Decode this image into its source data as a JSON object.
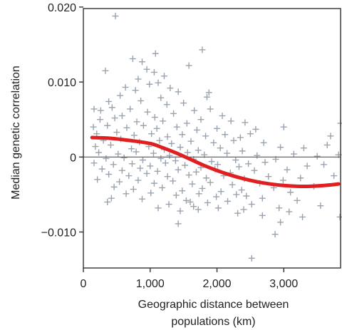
{
  "chart_data": {
    "type": "scatter",
    "ylabel": "Median genetic correlation",
    "xlabel_lines": [
      "Geographic distance between",
      "populations (km)"
    ],
    "xlim": [
      0,
      3850
    ],
    "ylim": [
      -0.0148,
      0.0198
    ],
    "x_ticks": [
      0,
      1000,
      2000,
      3000
    ],
    "x_tick_labels": [
      "0",
      "1,000",
      "2,000",
      "3,000"
    ],
    "y_ticks": [
      -0.01,
      0,
      0.01,
      0.02
    ],
    "y_tick_labels": [
      "−0.010",
      "0",
      "0.010",
      "0.020"
    ],
    "reference_line": {
      "y": 0,
      "color": "#555555"
    },
    "grid": false,
    "colors": {
      "points": "#9aa3ad",
      "trend": "#e02020",
      "axes": "#333333"
    },
    "series": [
      {
        "marker": "plus",
        "points": [
          [
            480,
            0.0188
          ],
          [
            1780,
            0.0143
          ],
          [
            1080,
            0.0138
          ],
          [
            740,
            0.0131
          ],
          [
            880,
            0.0127
          ],
          [
            1580,
            0.0122
          ],
          [
            330,
            0.0115
          ],
          [
            950,
            0.0117
          ],
          [
            1210,
            0.0108
          ],
          [
            1060,
            0.0113
          ],
          [
            820,
            0.0104
          ],
          [
            990,
            0.0097
          ],
          [
            1120,
            0.0099
          ],
          [
            630,
            0.0093
          ],
          [
            780,
            0.0089
          ],
          [
            1300,
            0.0092
          ],
          [
            1420,
            0.0087
          ],
          [
            1880,
            0.0086
          ],
          [
            550,
            0.0082
          ],
          [
            1160,
            0.0079
          ],
          [
            1850,
            0.008
          ],
          [
            380,
            0.0074
          ],
          [
            860,
            0.0075
          ],
          [
            1250,
            0.007
          ],
          [
            1500,
            0.0072
          ],
          [
            160,
            0.0064
          ],
          [
            260,
            0.0062
          ],
          [
            430,
            0.0066
          ],
          [
            700,
            0.0064
          ],
          [
            960,
            0.006
          ],
          [
            1660,
            0.0062
          ],
          [
            1900,
            0.0064
          ],
          [
            1350,
            0.0058
          ],
          [
            580,
            0.0055
          ],
          [
            1070,
            0.0053
          ],
          [
            2080,
            0.0055
          ],
          [
            250,
            0.005
          ],
          [
            470,
            0.0052
          ],
          [
            800,
            0.0047
          ],
          [
            1190,
            0.0048
          ],
          [
            1550,
            0.0045
          ],
          [
            1760,
            0.005
          ],
          [
            2210,
            0.0048
          ],
          [
            2420,
            0.0046
          ],
          [
            3850,
            0.0045
          ],
          [
            150,
            0.004
          ],
          [
            360,
            0.0042
          ],
          [
            650,
            0.0039
          ],
          [
            900,
            0.0042
          ],
          [
            1100,
            0.0038
          ],
          [
            1400,
            0.004
          ],
          [
            1700,
            0.0036
          ],
          [
            2000,
            0.0038
          ],
          [
            2580,
            0.0037
          ],
          [
            3000,
            0.004
          ],
          [
            200,
            0.0031
          ],
          [
            500,
            0.0033
          ],
          [
            760,
            0.0029
          ],
          [
            1020,
            0.0031
          ],
          [
            1260,
            0.0027
          ],
          [
            1480,
            0.003
          ],
          [
            1830,
            0.0028
          ],
          [
            2120,
            0.003
          ],
          [
            2350,
            0.0026
          ],
          [
            2500,
            0.0031
          ],
          [
            3700,
            0.0028
          ],
          [
            300,
            0.0022
          ],
          [
            560,
            0.0024
          ],
          [
            840,
            0.002
          ],
          [
            1140,
            0.0022
          ],
          [
            1320,
            0.0018
          ],
          [
            1610,
            0.0021
          ],
          [
            1950,
            0.0019
          ],
          [
            2250,
            0.0022
          ],
          [
            2700,
            0.0019
          ],
          [
            2950,
            0.0013
          ],
          [
            3300,
            0.0012
          ],
          [
            3650,
            0.0016
          ],
          [
            180,
            0.0014
          ],
          [
            410,
            0.0016
          ],
          [
            720,
            0.0011
          ],
          [
            980,
            0.0014
          ],
          [
            1210,
            0.001
          ],
          [
            1450,
            0.0013
          ],
          [
            1720,
            0.0009
          ],
          [
            2050,
            0.0012
          ],
          [
            2380,
            0.0008
          ],
          [
            230,
            0.0006
          ],
          [
            520,
            0.0004
          ],
          [
            790,
            0.0007
          ],
          [
            1050,
            0.0005
          ],
          [
            1290,
            0.0002
          ],
          [
            1560,
            0.0006
          ],
          [
            1810,
            0.0003
          ],
          [
            2150,
            0.0005
          ],
          [
            2600,
            0.0002
          ],
          [
            3150,
            0.0004
          ],
          [
            3500,
            0.0001
          ],
          [
            3820,
            0.0003
          ],
          [
            340,
            -0.0002
          ],
          [
            610,
            -0.0001
          ],
          [
            890,
            -0.0004
          ],
          [
            1160,
            -0.0002
          ],
          [
            1380,
            -0.0005
          ],
          [
            1650,
            -0.0003
          ],
          [
            1920,
            -0.0006
          ],
          [
            2280,
            -0.0004
          ],
          [
            2720,
            -0.0007
          ],
          [
            2880,
            -0.0003
          ],
          [
            160,
            -0.0008
          ],
          [
            450,
            -0.001
          ],
          [
            730,
            -0.0009
          ],
          [
            1000,
            -0.0012
          ],
          [
            1230,
            -0.0008
          ],
          [
            1520,
            -0.0011
          ],
          [
            1760,
            -0.0014
          ],
          [
            2010,
            -0.001
          ],
          [
            2330,
            -0.0013
          ],
          [
            2470,
            -0.0009
          ],
          [
            3350,
            -0.0012
          ],
          [
            3600,
            -0.001
          ],
          [
            280,
            -0.0016
          ],
          [
            580,
            -0.0018
          ],
          [
            850,
            -0.0015
          ],
          [
            1110,
            -0.0019
          ],
          [
            1420,
            -0.0017
          ],
          [
            1690,
            -0.002
          ],
          [
            1970,
            -0.0016
          ],
          [
            2200,
            -0.0021
          ],
          [
            2560,
            -0.0018
          ],
          [
            3050,
            -0.0017
          ],
          [
            380,
            -0.0023
          ],
          [
            680,
            -0.0025
          ],
          [
            950,
            -0.0022
          ],
          [
            1260,
            -0.0026
          ],
          [
            1580,
            -0.0024
          ],
          [
            1840,
            -0.0028
          ],
          [
            2100,
            -0.0025
          ],
          [
            2410,
            -0.0029
          ],
          [
            2770,
            -0.0026
          ],
          [
            3250,
            -0.0028
          ],
          [
            3750,
            -0.0025
          ],
          [
            210,
            -0.003
          ],
          [
            540,
            -0.0033
          ],
          [
            820,
            -0.0031
          ],
          [
            1060,
            -0.0035
          ],
          [
            1340,
            -0.0032
          ],
          [
            1630,
            -0.0036
          ],
          [
            1900,
            -0.0034
          ],
          [
            2230,
            -0.0037
          ],
          [
            2640,
            -0.0035
          ],
          [
            2990,
            -0.0031
          ],
          [
            460,
            -0.004
          ],
          [
            750,
            -0.0043
          ],
          [
            1180,
            -0.0041
          ],
          [
            1480,
            -0.0045
          ],
          [
            1780,
            -0.0042
          ],
          [
            2060,
            -0.0046
          ],
          [
            2370,
            -0.0044
          ],
          [
            2850,
            -0.0041
          ],
          [
            3450,
            -0.0039
          ],
          [
            1010,
            -0.0048
          ],
          [
            1390,
            -0.0051
          ],
          [
            1730,
            -0.0049
          ],
          [
            1990,
            -0.0053
          ],
          [
            2290,
            -0.005
          ],
          [
            2680,
            -0.0055
          ],
          [
            3100,
            -0.0047
          ],
          [
            420,
            -0.0055
          ],
          [
            640,
            -0.0049
          ],
          [
            880,
            -0.0056
          ],
          [
            1540,
            -0.0058
          ],
          [
            1860,
            -0.0061
          ],
          [
            2160,
            -0.0059
          ],
          [
            2520,
            -0.0063
          ],
          [
            3550,
            -0.0065
          ],
          [
            360,
            -0.006
          ],
          [
            1280,
            -0.0063
          ],
          [
            1650,
            -0.0066
          ],
          [
            2020,
            -0.0068
          ],
          [
            2400,
            -0.007
          ],
          [
            2930,
            -0.0068
          ],
          [
            3840,
            -0.008
          ],
          [
            1120,
            -0.0068
          ],
          [
            1450,
            -0.0072
          ],
          [
            1720,
            -0.007
          ],
          [
            2310,
            -0.0075
          ],
          [
            2680,
            -0.0078
          ],
          [
            3080,
            -0.0073
          ],
          [
            3280,
            -0.008
          ],
          [
            1420,
            -0.0089
          ],
          [
            2950,
            -0.0087
          ],
          [
            2870,
            -0.0103
          ],
          [
            2520,
            -0.0135
          ],
          [
            1600,
            -0.006
          ],
          [
            2440,
            -0.0052
          ],
          [
            3200,
            -0.0058
          ]
        ]
      },
      {
        "type": "line",
        "smooth": true,
        "points": [
          [
            130,
            0.0026
          ],
          [
            400,
            0.0025
          ],
          [
            700,
            0.0022
          ],
          [
            1000,
            0.0018
          ],
          [
            1200,
            0.0012
          ],
          [
            1400,
            0.0005
          ],
          [
            1600,
            -0.0003
          ],
          [
            1800,
            -0.0011
          ],
          [
            2000,
            -0.0018
          ],
          [
            2200,
            -0.0024
          ],
          [
            2400,
            -0.0029
          ],
          [
            2600,
            -0.0033
          ],
          [
            2800,
            -0.0036
          ],
          [
            3000,
            -0.0038
          ],
          [
            3200,
            -0.0039
          ],
          [
            3400,
            -0.0039
          ],
          [
            3600,
            -0.0038
          ],
          [
            3820,
            -0.0036
          ]
        ]
      }
    ]
  }
}
